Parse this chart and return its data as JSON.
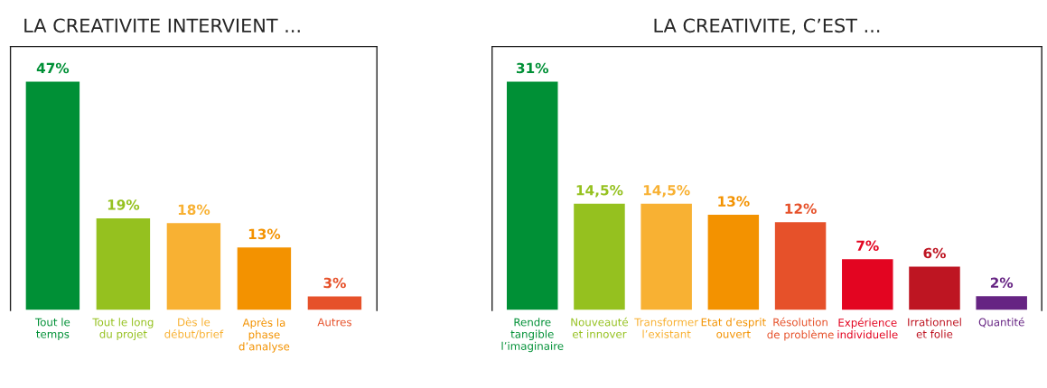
{
  "chart_data": [
    {
      "type": "bar",
      "title": "LA CREATIVITE INTERVIENT ...",
      "categories": [
        "Tout le\ntemps",
        "Tout le long\ndu projet",
        "Dès le\ndébut/brief",
        "Après la\nphase\nd’analyse",
        "Autres"
      ],
      "values": [
        47,
        19,
        18,
        13,
        3
      ],
      "value_labels": [
        "47%",
        "19%",
        "18%",
        "13%",
        "3%"
      ],
      "colors": [
        "#009036",
        "#95c11f",
        "#f8b133",
        "#f39200",
        "#e6512a"
      ],
      "grid": false,
      "legend": false
    },
    {
      "type": "bar",
      "title": "LA CREATIVITE, C’EST ...",
      "categories": [
        "Rendre\ntangible\nl’imaginaire",
        "Nouveauté\net innover",
        "Transformer\nl’existant",
        "Etat d’esprit\nouvert",
        "Résolution\nde problème",
        "Expérience\nindividuelle",
        "Irrationnel\net folie",
        "Quantité"
      ],
      "values": [
        31,
        14.5,
        14.5,
        13,
        12,
        7,
        6,
        2
      ],
      "value_labels": [
        "31%",
        "14,5%",
        "14,5%",
        "13%",
        "12%",
        "7%",
        "6%",
        "2%"
      ],
      "colors": [
        "#009036",
        "#95c11f",
        "#f8b133",
        "#f39200",
        "#e6512a",
        "#e30521",
        "#be1522",
        "#662483"
      ],
      "grid": false,
      "legend": false
    }
  ]
}
